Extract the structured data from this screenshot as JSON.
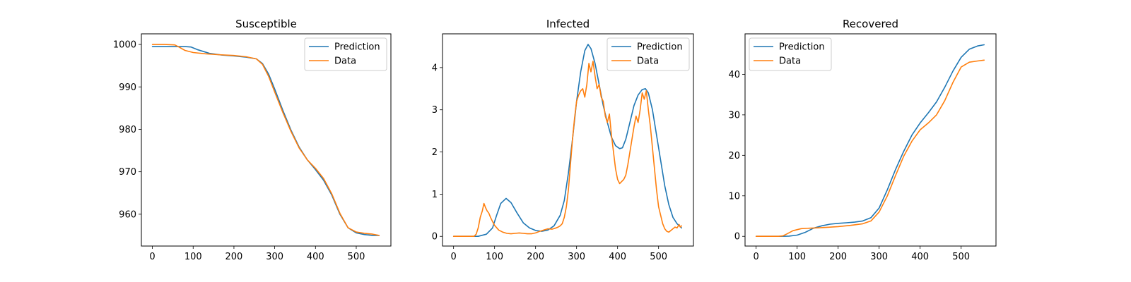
{
  "colors": {
    "prediction": "#1f77b4",
    "data": "#ff7f0e"
  },
  "chart_data": [
    {
      "type": "line",
      "title": "Susceptible",
      "xlabel": "",
      "ylabel": "",
      "xlim": [
        -27,
        585
      ],
      "ylim": [
        952.5,
        1002.5
      ],
      "xticks": [
        0,
        100,
        200,
        300,
        400,
        500
      ],
      "yticks": [
        960,
        970,
        980,
        990,
        1000
      ],
      "grid": false,
      "legend": "upper right",
      "series": [
        {
          "name": "Prediction",
          "color": "#1f77b4",
          "x": [
            0,
            40,
            80,
            95,
            110,
            140,
            170,
            200,
            230,
            255,
            270,
            285,
            300,
            320,
            340,
            360,
            380,
            400,
            420,
            440,
            460,
            480,
            500,
            520,
            540,
            556
          ],
          "y": [
            999.5,
            999.5,
            999.5,
            999.4,
            998.8,
            997.9,
            997.5,
            997.3,
            997.0,
            996.6,
            995.5,
            993.0,
            989.5,
            984.5,
            979.8,
            975.8,
            972.8,
            970.5,
            968.0,
            964.5,
            960.0,
            956.8,
            955.6,
            955.2,
            955.0,
            955.0
          ]
        },
        {
          "name": "Data",
          "color": "#ff7f0e",
          "x": [
            0,
            30,
            55,
            65,
            80,
            100,
            130,
            160,
            200,
            230,
            255,
            270,
            285,
            300,
            320,
            340,
            360,
            380,
            400,
            420,
            440,
            460,
            480,
            500,
            520,
            540,
            556
          ],
          "y": [
            1000.0,
            1000.0,
            999.9,
            999.4,
            998.6,
            998.1,
            997.8,
            997.6,
            997.4,
            997.1,
            996.6,
            995.3,
            992.5,
            988.8,
            984.0,
            979.5,
            975.6,
            972.8,
            970.8,
            968.4,
            964.8,
            960.2,
            956.8,
            955.8,
            955.5,
            955.3,
            955.0
          ]
        }
      ]
    },
    {
      "type": "line",
      "title": "Infected",
      "xlabel": "",
      "ylabel": "",
      "xlim": [
        -27,
        585
      ],
      "ylim": [
        -0.23,
        4.8
      ],
      "xticks": [
        0,
        100,
        200,
        300,
        400,
        500
      ],
      "yticks": [
        0,
        1,
        2,
        3,
        4
      ],
      "grid": false,
      "legend": "upper right",
      "series": [
        {
          "name": "Prediction",
          "color": "#1f77b4",
          "x": [
            0,
            60,
            80,
            95,
            105,
            115,
            128,
            140,
            155,
            170,
            185,
            200,
            215,
            230,
            245,
            260,
            270,
            280,
            290,
            300,
            310,
            320,
            328,
            335,
            345,
            355,
            365,
            375,
            385,
            395,
            405,
            412,
            420,
            430,
            440,
            450,
            460,
            468,
            475,
            485,
            495,
            505,
            515,
            525,
            535,
            545,
            556
          ],
          "y": [
            0.0,
            0.0,
            0.05,
            0.2,
            0.5,
            0.78,
            0.9,
            0.8,
            0.55,
            0.32,
            0.2,
            0.14,
            0.12,
            0.15,
            0.25,
            0.5,
            0.85,
            1.5,
            2.3,
            3.2,
            3.9,
            4.4,
            4.55,
            4.45,
            4.1,
            3.6,
            3.1,
            2.7,
            2.35,
            2.15,
            2.08,
            2.1,
            2.3,
            2.7,
            3.1,
            3.35,
            3.48,
            3.5,
            3.4,
            3.0,
            2.4,
            1.8,
            1.2,
            0.75,
            0.45,
            0.3,
            0.2
          ]
        },
        {
          "name": "Data",
          "color": "#ff7f0e",
          "x": [
            0,
            40,
            50,
            55,
            60,
            65,
            70,
            74,
            78,
            82,
            86,
            90,
            95,
            100,
            110,
            120,
            130,
            140,
            150,
            160,
            170,
            180,
            190,
            200,
            210,
            220,
            230,
            240,
            250,
            255,
            260,
            265,
            270,
            275,
            280,
            285,
            290,
            295,
            300,
            305,
            310,
            315,
            320,
            325,
            330,
            335,
            340,
            345,
            350,
            355,
            360,
            365,
            370,
            375,
            380,
            385,
            390,
            395,
            400,
            405,
            410,
            415,
            420,
            425,
            430,
            435,
            440,
            445,
            450,
            455,
            460,
            465,
            470,
            475,
            480,
            485,
            490,
            495,
            500,
            505,
            510,
            515,
            520,
            525,
            530,
            535,
            540,
            545,
            550,
            553,
            556
          ],
          "y": [
            0.0,
            0.0,
            0.0,
            0.05,
            0.2,
            0.45,
            0.6,
            0.78,
            0.68,
            0.6,
            0.55,
            0.45,
            0.35,
            0.26,
            0.15,
            0.1,
            0.07,
            0.06,
            0.07,
            0.08,
            0.07,
            0.06,
            0.06,
            0.08,
            0.12,
            0.15,
            0.18,
            0.17,
            0.2,
            0.22,
            0.25,
            0.3,
            0.45,
            0.7,
            1.1,
            1.7,
            2.3,
            2.8,
            3.2,
            3.35,
            3.45,
            3.5,
            3.3,
            3.6,
            4.1,
            3.9,
            4.15,
            3.8,
            3.5,
            3.6,
            3.3,
            3.2,
            2.85,
            2.7,
            2.9,
            2.4,
            2.0,
            1.6,
            1.35,
            1.25,
            1.3,
            1.35,
            1.45,
            1.7,
            2.0,
            2.3,
            2.6,
            2.85,
            2.7,
            3.0,
            3.4,
            3.25,
            3.45,
            3.0,
            2.6,
            2.1,
            1.6,
            1.1,
            0.7,
            0.5,
            0.3,
            0.18,
            0.12,
            0.1,
            0.14,
            0.18,
            0.22,
            0.2,
            0.28,
            0.22,
            0.25
          ]
        }
      ]
    },
    {
      "type": "line",
      "title": "Recovered",
      "xlabel": "",
      "ylabel": "",
      "xlim": [
        -27,
        585
      ],
      "ylim": [
        -2.4,
        50
      ],
      "xticks": [
        0,
        100,
        200,
        300,
        400,
        500
      ],
      "yticks": [
        0,
        10,
        20,
        30,
        40
      ],
      "grid": false,
      "legend": "upper left",
      "series": [
        {
          "name": "Prediction",
          "color": "#1f77b4",
          "x": [
            0,
            60,
            80,
            100,
            120,
            140,
            160,
            180,
            200,
            220,
            240,
            260,
            280,
            300,
            320,
            340,
            360,
            380,
            400,
            420,
            440,
            460,
            480,
            500,
            520,
            540,
            556
          ],
          "y": [
            0.0,
            0.0,
            0.05,
            0.3,
            1.0,
            2.0,
            2.6,
            3.0,
            3.2,
            3.35,
            3.5,
            3.8,
            4.6,
            7.0,
            11.5,
            16.5,
            21.0,
            25.0,
            28.0,
            30.5,
            33.2,
            36.8,
            40.8,
            44.2,
            46.2,
            47.0,
            47.3
          ]
        },
        {
          "name": "Data",
          "color": "#ff7f0e",
          "x": [
            0,
            55,
            65,
            75,
            90,
            110,
            130,
            150,
            170,
            200,
            230,
            260,
            280,
            300,
            320,
            340,
            360,
            380,
            400,
            420,
            440,
            460,
            480,
            500,
            520,
            540,
            556
          ],
          "y": [
            0.0,
            0.0,
            0.1,
            0.6,
            1.4,
            1.9,
            2.0,
            2.1,
            2.2,
            2.4,
            2.7,
            3.1,
            3.8,
            6.0,
            10.0,
            15.0,
            19.8,
            23.5,
            26.3,
            28.0,
            30.0,
            33.5,
            38.0,
            41.8,
            43.0,
            43.3,
            43.5
          ]
        }
      ]
    }
  ]
}
